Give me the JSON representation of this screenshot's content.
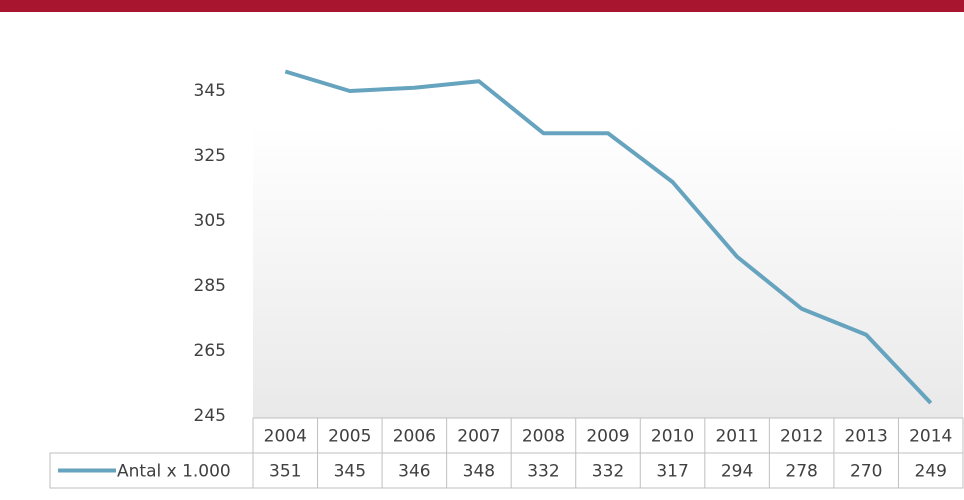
{
  "chart_data": {
    "type": "line",
    "categories": [
      "2004",
      "2005",
      "2006",
      "2007",
      "2008",
      "2009",
      "2010",
      "2011",
      "2012",
      "2013",
      "2014"
    ],
    "series": [
      {
        "name": "Antal x 1.000",
        "color": "#66a3bf",
        "values": [
          351,
          345,
          346,
          348,
          332,
          332,
          317,
          294,
          278,
          270,
          249
        ]
      }
    ],
    "ylim": [
      245,
      355
    ],
    "yticks": [
      245,
      265,
      285,
      305,
      325,
      345
    ],
    "grid": false
  }
}
